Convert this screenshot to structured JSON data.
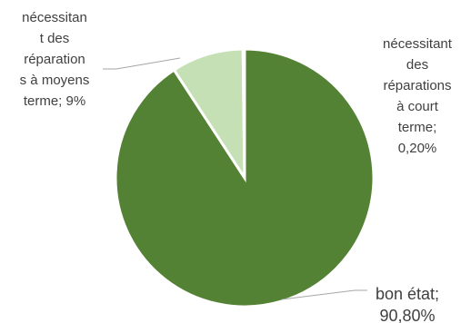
{
  "chart_data": {
    "type": "pie",
    "title": "",
    "slices": [
      {
        "name": "bon état",
        "value": 90.8,
        "value_label": "90,80%",
        "color": "#548235",
        "label_lines": [
          "bon état;",
          "90,80%"
        ]
      },
      {
        "name": "nécessitant des réparations à moyens terme",
        "value": 9,
        "value_label": "9%",
        "color": "#c5e0b4",
        "label_lines": [
          "nécessitan",
          "t des",
          "réparation",
          "s à moyens",
          "terme; 9%"
        ]
      },
      {
        "name": "nécessitant des réparations à court terme",
        "value": 0.2,
        "value_label": "0,20%",
        "color": "#a9d18e",
        "label_lines": [
          "nécessitant",
          "des",
          "réparations",
          "à court",
          "terme;",
          "0,20%"
        ]
      }
    ],
    "legend": "none",
    "label_position": "outside with leader lines"
  }
}
